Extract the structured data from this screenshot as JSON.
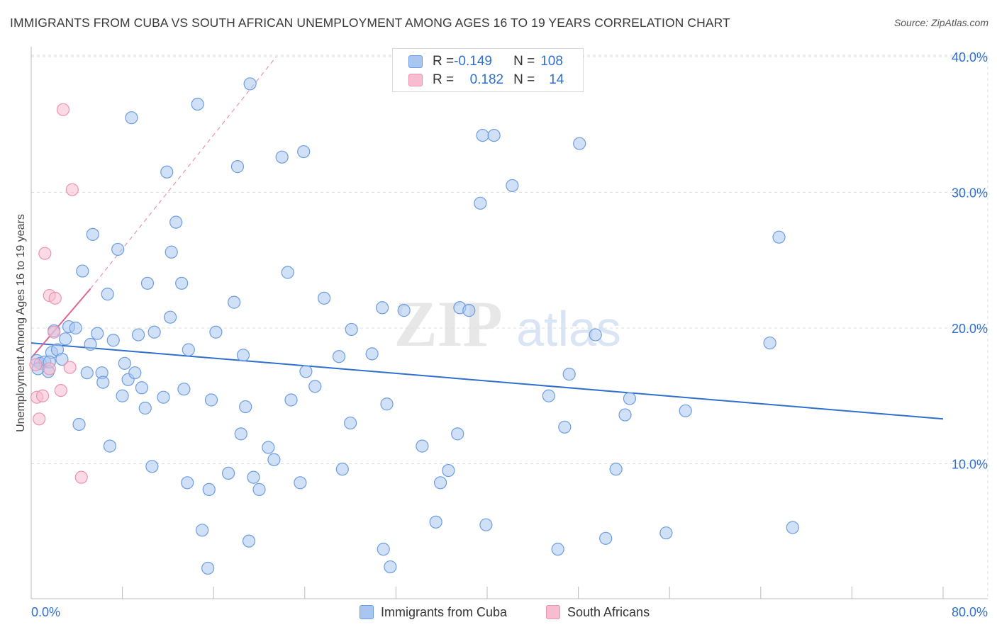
{
  "title": "IMMIGRANTS FROM CUBA VS SOUTH AFRICAN UNEMPLOYMENT AMONG AGES 16 TO 19 YEARS CORRELATION CHART",
  "source": "Source: ZipAtlas.com",
  "watermark": {
    "zip": "ZIP",
    "atlas": "atlas"
  },
  "colors": {
    "blue_fill": "#a9c6f0",
    "blue_stroke": "#6d9de0",
    "blue_line": "#2f6fcd",
    "pink_fill": "#f7bcd0",
    "pink_stroke": "#ec93b0",
    "pink_line": "#e0648e",
    "tick_label": "#2e6fd1",
    "grid": "#dcdcdc"
  },
  "legend": {
    "rows": [
      {
        "r_label": "R = ",
        "r_value": "-0.149",
        "n_label": "N = ",
        "n_value": "108",
        "series": "blue"
      },
      {
        "r_label": "R = ",
        "r_value": "0.182",
        "n_label": "N = ",
        "n_value": "14",
        "series": "pink"
      }
    ]
  },
  "bottom_legend": {
    "blue": "Immigrants from Cuba",
    "pink": "South Africans"
  },
  "chart_data": {
    "type": "scatter",
    "title": "IMMIGRANTS FROM CUBA VS SOUTH AFRICAN UNEMPLOYMENT AMONG AGES 16 TO 19 YEARS CORRELATION CHART",
    "xlabel": "",
    "ylabel": "Unemployment Among Ages 16 to 19 years",
    "xlim": [
      0,
      80
    ],
    "ylim": [
      0,
      40
    ],
    "x_tick_labels": [
      "0.0%",
      "80.0%"
    ],
    "y_ticks": [
      10,
      20,
      30,
      40
    ],
    "y_tick_labels": [
      "10.0%",
      "20.0%",
      "30.0%",
      "40.0%"
    ],
    "grid": true,
    "legend_placement": "top-center",
    "series": [
      {
        "name": "Immigrants from Cuba",
        "color": "blue",
        "trend": {
          "x": [
            0,
            80
          ],
          "y": [
            18.9,
            13.3
          ],
          "style": "solid"
        },
        "points": [
          [
            0.5,
            17.6
          ],
          [
            0.8,
            17.4
          ],
          [
            1.2,
            17.5
          ],
          [
            1.5,
            16.8
          ],
          [
            1.8,
            18.2
          ],
          [
            2.0,
            19.8
          ],
          [
            2.3,
            18.4
          ],
          [
            2.7,
            17.7
          ],
          [
            3.0,
            19.2
          ],
          [
            3.3,
            20.1
          ],
          [
            3.9,
            20.0
          ],
          [
            4.2,
            12.9
          ],
          [
            4.5,
            24.2
          ],
          [
            4.9,
            16.7
          ],
          [
            5.2,
            18.8
          ],
          [
            5.4,
            26.9
          ],
          [
            5.8,
            19.6
          ],
          [
            6.2,
            16.7
          ],
          [
            6.3,
            16.0
          ],
          [
            6.7,
            22.5
          ],
          [
            6.9,
            11.3
          ],
          [
            7.2,
            19.1
          ],
          [
            7.6,
            25.8
          ],
          [
            8.0,
            15.0
          ],
          [
            8.2,
            17.4
          ],
          [
            8.5,
            16.2
          ],
          [
            8.8,
            35.5
          ],
          [
            9.1,
            16.7
          ],
          [
            9.4,
            19.5
          ],
          [
            9.7,
            15.6
          ],
          [
            10.0,
            14.1
          ],
          [
            10.2,
            23.3
          ],
          [
            10.6,
            9.8
          ],
          [
            10.8,
            19.7
          ],
          [
            11.6,
            14.9
          ],
          [
            11.9,
            31.5
          ],
          [
            12.2,
            20.8
          ],
          [
            12.3,
            25.6
          ],
          [
            12.7,
            27.8
          ],
          [
            13.2,
            23.3
          ],
          [
            13.4,
            15.5
          ],
          [
            13.7,
            8.6
          ],
          [
            13.8,
            18.4
          ],
          [
            14.6,
            36.5
          ],
          [
            15.0,
            5.1
          ],
          [
            15.5,
            2.3
          ],
          [
            15.6,
            8.1
          ],
          [
            15.8,
            14.7
          ],
          [
            16.2,
            19.7
          ],
          [
            17.3,
            9.3
          ],
          [
            17.8,
            21.9
          ],
          [
            18.1,
            31.9
          ],
          [
            18.4,
            12.2
          ],
          [
            18.6,
            18.0
          ],
          [
            18.8,
            14.2
          ],
          [
            19.1,
            4.3
          ],
          [
            19.2,
            38.0
          ],
          [
            19.5,
            9.0
          ],
          [
            20.0,
            8.1
          ],
          [
            20.8,
            11.2
          ],
          [
            21.3,
            10.3
          ],
          [
            22.0,
            32.6
          ],
          [
            22.5,
            24.1
          ],
          [
            22.8,
            14.7
          ],
          [
            23.6,
            8.6
          ],
          [
            23.9,
            33.0
          ],
          [
            24.1,
            16.8
          ],
          [
            24.9,
            15.7
          ],
          [
            25.7,
            22.2
          ],
          [
            27.0,
            17.9
          ],
          [
            27.3,
            9.6
          ],
          [
            28.0,
            13.0
          ],
          [
            28.1,
            19.9
          ],
          [
            29.9,
            18.1
          ],
          [
            30.8,
            21.5
          ],
          [
            30.9,
            3.7
          ],
          [
            31.2,
            14.4
          ],
          [
            31.5,
            2.4
          ],
          [
            32.7,
            21.3
          ],
          [
            34.3,
            11.3
          ],
          [
            35.5,
            5.7
          ],
          [
            35.9,
            8.6
          ],
          [
            36.6,
            9.5
          ],
          [
            37.4,
            12.2
          ],
          [
            37.6,
            21.5
          ],
          [
            38.4,
            21.3
          ],
          [
            39.4,
            29.2
          ],
          [
            39.6,
            34.2
          ],
          [
            39.9,
            5.5
          ],
          [
            40.6,
            34.2
          ],
          [
            42.2,
            30.5
          ],
          [
            45.4,
            15.0
          ],
          [
            46.2,
            3.7
          ],
          [
            46.8,
            12.7
          ],
          [
            47.2,
            16.6
          ],
          [
            48.1,
            33.6
          ],
          [
            49.5,
            19.5
          ],
          [
            50.4,
            4.5
          ],
          [
            51.3,
            9.6
          ],
          [
            52.1,
            13.6
          ],
          [
            52.5,
            14.8
          ],
          [
            55.7,
            4.9
          ],
          [
            57.4,
            13.9
          ],
          [
            64.8,
            18.9
          ],
          [
            65.6,
            26.7
          ],
          [
            66.8,
            5.3
          ],
          [
            0.6,
            17.0
          ],
          [
            1.6,
            17.5
          ]
        ]
      },
      {
        "name": "South Africans",
        "color": "pink",
        "trend": {
          "x": [
            0,
            5.2
          ],
          "y": [
            17.8,
            22.9
          ],
          "style": "solid",
          "extended": {
            "x": [
              5.2,
              21.5
            ],
            "y": [
              22.9,
              40.0
            ],
            "style": "dashed"
          }
        },
        "points": [
          [
            0.4,
            17.3
          ],
          [
            0.5,
            14.9
          ],
          [
            0.7,
            13.3
          ],
          [
            1.0,
            15.0
          ],
          [
            1.2,
            25.5
          ],
          [
            1.6,
            22.4
          ],
          [
            1.6,
            17.0
          ],
          [
            2.1,
            22.2
          ],
          [
            2.6,
            15.4
          ],
          [
            2.8,
            36.1
          ],
          [
            3.4,
            17.1
          ],
          [
            3.6,
            30.2
          ],
          [
            4.4,
            9.0
          ],
          [
            2.0,
            19.7
          ]
        ]
      }
    ]
  }
}
